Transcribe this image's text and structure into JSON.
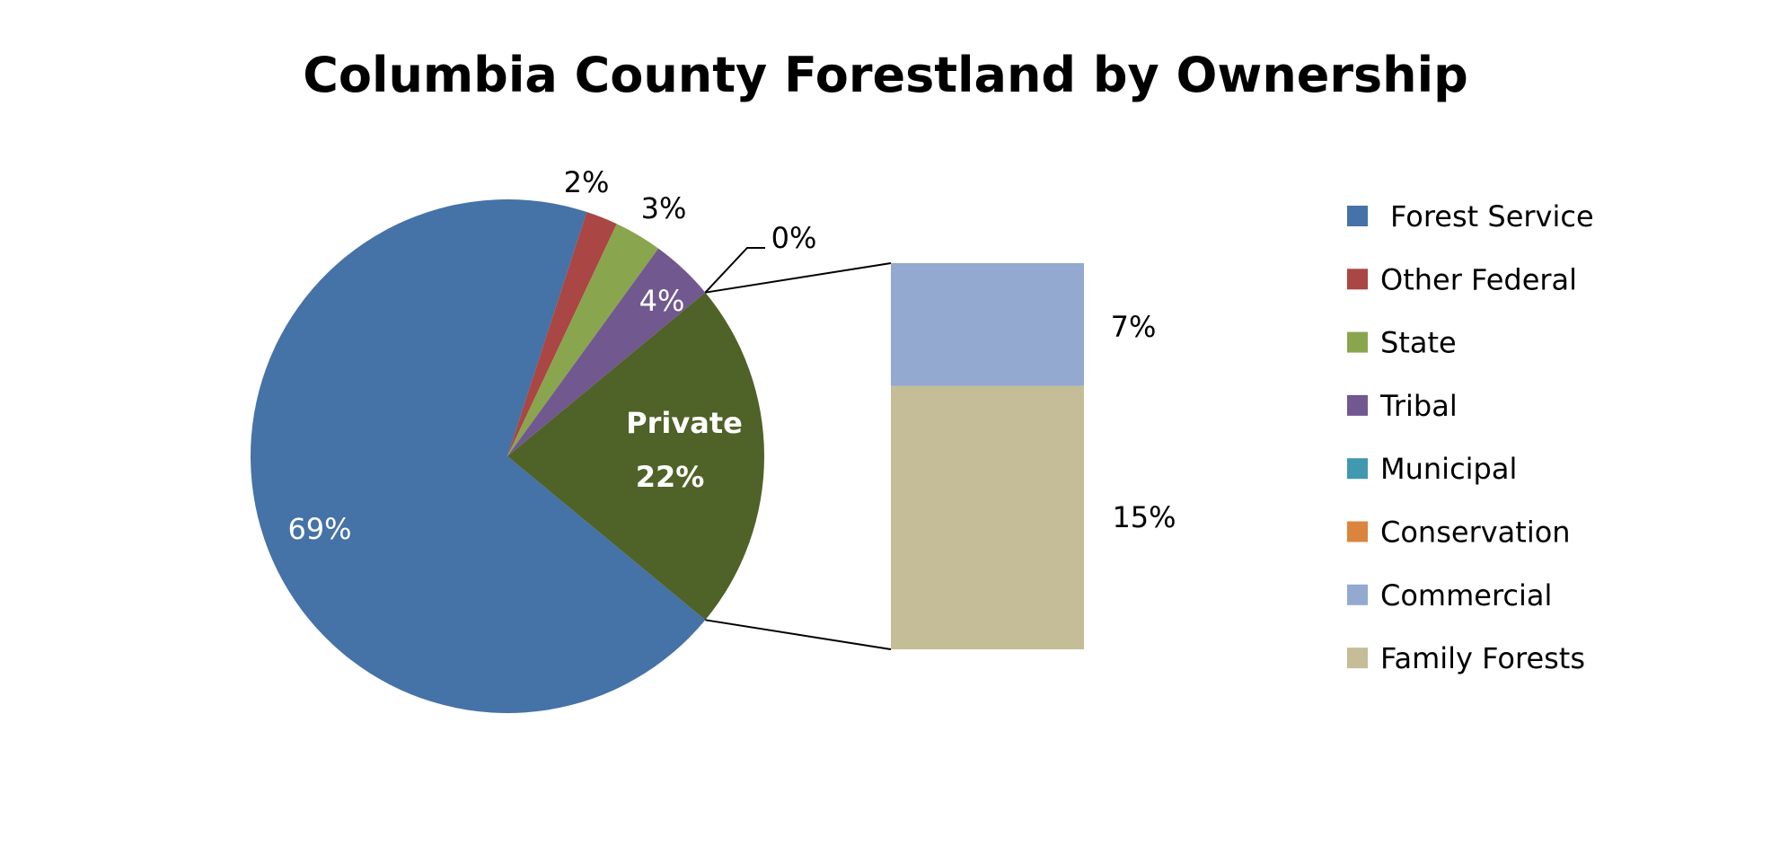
{
  "chart_data": {
    "type": "pie",
    "subtype": "bar-of-pie",
    "title": "Columbia County Forestland by Ownership",
    "legend_position": "right",
    "categories": [
      "Forest Service",
      "Other Federal",
      "State",
      "Tribal",
      "Municipal",
      "Conservation",
      "Commercial",
      "Family Forests"
    ],
    "colors": [
      "#4572A7",
      "#AA4643",
      "#89A54E",
      "#71588F",
      "#4198AF",
      "#DB843D",
      "#93A9CF",
      "#C4BD97"
    ],
    "pie": {
      "slices": [
        {
          "name": "Forest Service",
          "value": 69,
          "label": "69%",
          "color": "#4572A7"
        },
        {
          "name": "Other Federal",
          "value": 2,
          "label": "2%",
          "color": "#AA4643"
        },
        {
          "name": "State",
          "value": 3,
          "label": "3%",
          "color": "#89A54E"
        },
        {
          "name": "Tribal",
          "value": 4,
          "label": "4%",
          "color": "#71588F"
        },
        {
          "name": "Municipal",
          "value": 0,
          "label": "0%",
          "color": "#4198AF"
        },
        {
          "name": "Private",
          "value": 22,
          "label": "Private",
          "sublabel": "22%",
          "color": "#4F6228"
        }
      ]
    },
    "bar": {
      "segments": [
        {
          "name": "Conservation",
          "value": 0,
          "label": "",
          "color": "#DB843D"
        },
        {
          "name": "Commercial",
          "value": 7,
          "label": "7%",
          "color": "#93A9CF"
        },
        {
          "name": "Family Forests",
          "value": 15,
          "label": "15%",
          "color": "#C4BD97"
        }
      ]
    }
  }
}
